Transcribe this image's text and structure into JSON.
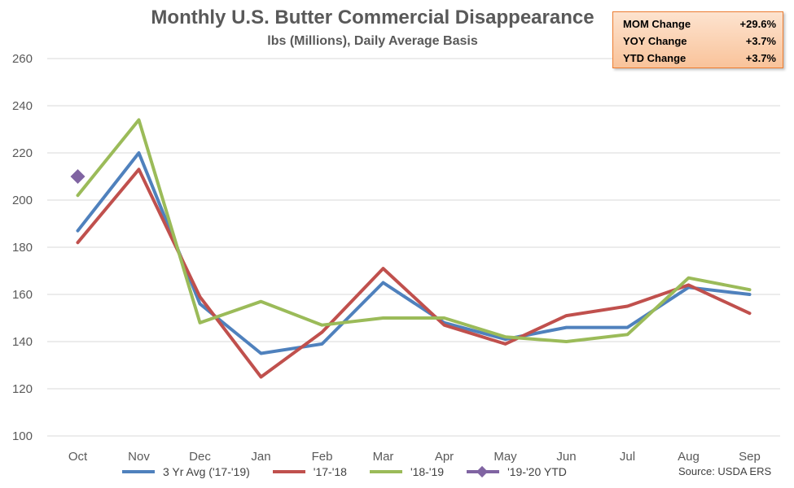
{
  "title": "Monthly U.S. Butter Commercial Disappearance",
  "subtitle": "lbs (Millions), Daily Average Basis",
  "stats": [
    {
      "label": "MOM Change",
      "value": "+29.6%"
    },
    {
      "label": "YOY Change",
      "value": "+3.7%"
    },
    {
      "label": "YTD Change",
      "value": "+3.7%"
    }
  ],
  "source": "Source: USDA ERS",
  "colors": {
    "series_1": "#4f81bd",
    "series_2": "#c0504d",
    "series_3": "#9bbb59",
    "series_4": "#8064a2",
    "grid": "#d9d9d9",
    "text": "#595959"
  },
  "chart_data": {
    "type": "line",
    "categories": [
      "Oct",
      "Nov",
      "Dec",
      "Jan",
      "Feb",
      "Mar",
      "Apr",
      "May",
      "Jun",
      "Jul",
      "Aug",
      "Sep"
    ],
    "ylim": [
      100,
      260
    ],
    "yticks": [
      100,
      120,
      140,
      160,
      180,
      200,
      220,
      240,
      260
    ],
    "grid": true,
    "legend_position": "bottom",
    "series": [
      {
        "name": "3 Yr Avg ('17-'19)",
        "values": [
          187,
          220,
          156,
          135,
          139,
          165,
          148,
          141,
          146,
          146,
          163,
          160
        ]
      },
      {
        "name": "'17-'18",
        "values": [
          182,
          213,
          159,
          125,
          144,
          171,
          147,
          139,
          151,
          155,
          164,
          152
        ]
      },
      {
        "name": "'18-'19",
        "values": [
          202,
          234,
          148,
          157,
          147,
          150,
          150,
          142,
          140,
          143,
          167,
          162
        ]
      },
      {
        "name": "'19-'20 YTD",
        "values": [
          210,
          null,
          null,
          null,
          null,
          null,
          null,
          null,
          null,
          null,
          null,
          null
        ],
        "marker": "diamond"
      }
    ]
  }
}
